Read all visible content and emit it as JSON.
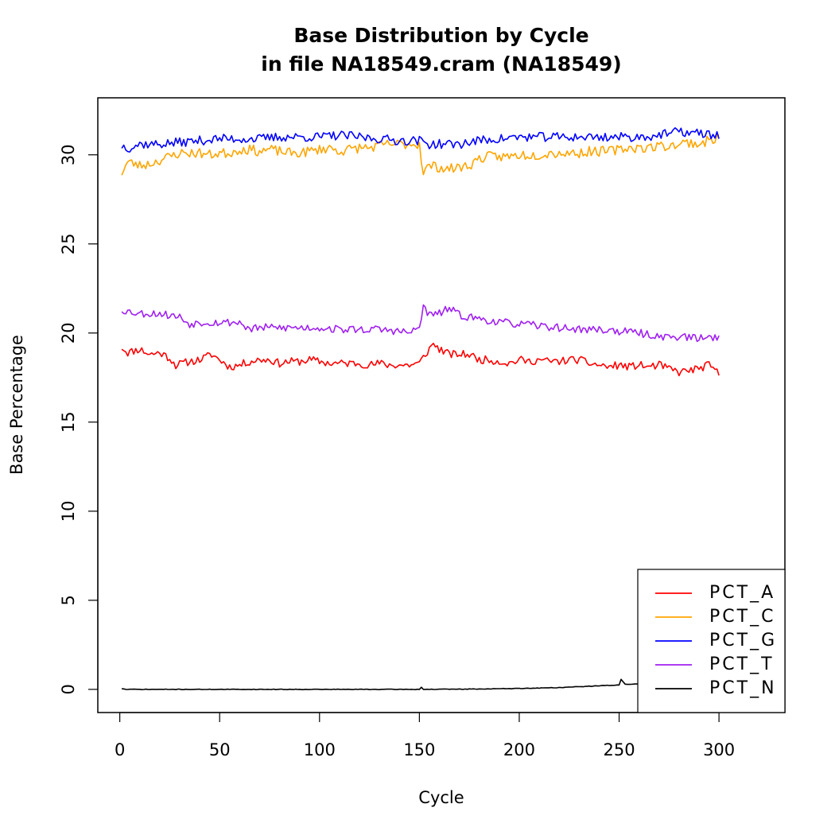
{
  "chart_data": {
    "type": "line",
    "title": "Base Distribution by Cycle",
    "subtitle": "in file NA18549.cram (NA18549)",
    "xlabel": "Cycle",
    "ylabel": "Base Percentage",
    "xlim": [
      -11,
      333
    ],
    "ylim": [
      -1.3,
      33.2
    ],
    "xticks": [
      0,
      50,
      100,
      150,
      200,
      250,
      300
    ],
    "yticks": [
      0,
      5,
      10,
      15,
      20,
      25,
      30
    ],
    "xtick_labels": [
      "0",
      "50",
      "100",
      "150",
      "200",
      "250",
      "300"
    ],
    "ytick_labels": [
      "0",
      "5",
      "10",
      "15",
      "20",
      "25",
      "30"
    ],
    "grid": false,
    "legend_position": "bottom-right",
    "x": [
      1,
      300
    ],
    "series": [
      {
        "name": "PCT_A",
        "color": "#ff0000",
        "anchors": [
          [
            1,
            19.2
          ],
          [
            4,
            18.9
          ],
          [
            10,
            19.1
          ],
          [
            15,
            18.8
          ],
          [
            20,
            18.9
          ],
          [
            25,
            18.6
          ],
          [
            28,
            18.2
          ],
          [
            35,
            18.4
          ],
          [
            40,
            18.5
          ],
          [
            46,
            18.8
          ],
          [
            50,
            18.5
          ],
          [
            55,
            18.1
          ],
          [
            60,
            18.2
          ],
          [
            65,
            18.4
          ],
          [
            70,
            18.5
          ],
          [
            75,
            18.5
          ],
          [
            80,
            18.3
          ],
          [
            85,
            18.4
          ],
          [
            90,
            18.4
          ],
          [
            95,
            18.5
          ],
          [
            100,
            18.4
          ],
          [
            105,
            18.3
          ],
          [
            110,
            18.3
          ],
          [
            115,
            18.3
          ],
          [
            120,
            18.3
          ],
          [
            125,
            18.2
          ],
          [
            130,
            18.3
          ],
          [
            135,
            18.2
          ],
          [
            140,
            18.2
          ],
          [
            145,
            18.2
          ],
          [
            150,
            18.3
          ],
          [
            153,
            18.8
          ],
          [
            157,
            19.4
          ],
          [
            160,
            19.1
          ],
          [
            165,
            18.8
          ],
          [
            170,
            18.8
          ],
          [
            175,
            18.8
          ],
          [
            180,
            18.5
          ],
          [
            185,
            18.5
          ],
          [
            190,
            18.4
          ],
          [
            195,
            18.3
          ],
          [
            200,
            18.5
          ],
          [
            205,
            18.4
          ],
          [
            210,
            18.5
          ],
          [
            215,
            18.4
          ],
          [
            220,
            18.4
          ],
          [
            225,
            18.5
          ],
          [
            230,
            18.5
          ],
          [
            235,
            18.3
          ],
          [
            240,
            18.2
          ],
          [
            245,
            18.1
          ],
          [
            250,
            18.2
          ],
          [
            255,
            18.1
          ],
          [
            260,
            18.2
          ],
          [
            265,
            18.1
          ],
          [
            270,
            18.2
          ],
          [
            275,
            18.0
          ],
          [
            280,
            17.8
          ],
          [
            285,
            17.9
          ],
          [
            290,
            18.0
          ],
          [
            295,
            18.2
          ],
          [
            300,
            17.7
          ]
        ],
        "noise": 0.22,
        "seed": 11
      },
      {
        "name": "PCT_C",
        "color": "#ffa500",
        "anchors": [
          [
            1,
            29.0
          ],
          [
            4,
            29.6
          ],
          [
            10,
            29.4
          ],
          [
            15,
            29.5
          ],
          [
            20,
            29.7
          ],
          [
            25,
            29.9
          ],
          [
            30,
            30.1
          ],
          [
            35,
            30.1
          ],
          [
            40,
            30.1
          ],
          [
            45,
            30.0
          ],
          [
            50,
            30.1
          ],
          [
            55,
            30.1
          ],
          [
            60,
            30.3
          ],
          [
            65,
            30.3
          ],
          [
            70,
            30.2
          ],
          [
            75,
            30.3
          ],
          [
            80,
            30.2
          ],
          [
            85,
            30.1
          ],
          [
            90,
            30.1
          ],
          [
            95,
            30.2
          ],
          [
            100,
            30.3
          ],
          [
            105,
            30.4
          ],
          [
            110,
            30.2
          ],
          [
            115,
            30.3
          ],
          [
            120,
            30.4
          ],
          [
            125,
            30.4
          ],
          [
            130,
            30.5
          ],
          [
            135,
            30.6
          ],
          [
            140,
            30.6
          ],
          [
            145,
            30.6
          ],
          [
            150,
            30.6
          ],
          [
            152,
            29.0
          ],
          [
            155,
            29.4
          ],
          [
            160,
            29.3
          ],
          [
            165,
            29.2
          ],
          [
            170,
            29.3
          ],
          [
            175,
            29.4
          ],
          [
            180,
            29.8
          ],
          [
            185,
            29.9
          ],
          [
            190,
            29.9
          ],
          [
            195,
            29.9
          ],
          [
            200,
            30.0
          ],
          [
            205,
            30.0
          ],
          [
            210,
            30.0
          ],
          [
            215,
            30.1
          ],
          [
            220,
            30.1
          ],
          [
            225,
            30.1
          ],
          [
            230,
            30.1
          ],
          [
            235,
            30.2
          ],
          [
            240,
            30.2
          ],
          [
            245,
            30.2
          ],
          [
            250,
            30.3
          ],
          [
            255,
            30.4
          ],
          [
            260,
            30.4
          ],
          [
            265,
            30.4
          ],
          [
            270,
            30.5
          ],
          [
            275,
            30.5
          ],
          [
            280,
            30.6
          ],
          [
            285,
            30.7
          ],
          [
            290,
            30.6
          ],
          [
            295,
            30.8
          ],
          [
            300,
            31.0
          ]
        ],
        "noise": 0.28,
        "seed": 23
      },
      {
        "name": "PCT_G",
        "color": "#0000ff",
        "anchors": [
          [
            1,
            30.5
          ],
          [
            5,
            30.4
          ],
          [
            10,
            30.6
          ],
          [
            20,
            30.6
          ],
          [
            30,
            30.7
          ],
          [
            40,
            30.8
          ],
          [
            50,
            30.9
          ],
          [
            60,
            30.9
          ],
          [
            70,
            30.9
          ],
          [
            80,
            31.0
          ],
          [
            90,
            31.0
          ],
          [
            100,
            31.0
          ],
          [
            110,
            31.1
          ],
          [
            120,
            31.0
          ],
          [
            130,
            30.9
          ],
          [
            140,
            30.8
          ],
          [
            150,
            30.8
          ],
          [
            155,
            30.6
          ],
          [
            160,
            30.6
          ],
          [
            170,
            30.6
          ],
          [
            180,
            30.8
          ],
          [
            190,
            30.9
          ],
          [
            200,
            31.0
          ],
          [
            210,
            31.0
          ],
          [
            220,
            31.0
          ],
          [
            230,
            31.0
          ],
          [
            240,
            31.0
          ],
          [
            250,
            31.0
          ],
          [
            260,
            31.0
          ],
          [
            270,
            31.1
          ],
          [
            280,
            31.3
          ],
          [
            290,
            31.2
          ],
          [
            300,
            31.1
          ]
        ],
        "noise": 0.26,
        "seed": 37
      },
      {
        "name": "PCT_T",
        "color": "#a020f0",
        "anchors": [
          [
            1,
            21.3
          ],
          [
            5,
            21.2
          ],
          [
            10,
            21.1
          ],
          [
            20,
            21.1
          ],
          [
            30,
            20.9
          ],
          [
            35,
            20.5
          ],
          [
            40,
            20.6
          ],
          [
            50,
            20.6
          ],
          [
            55,
            20.6
          ],
          [
            60,
            20.6
          ],
          [
            65,
            20.2
          ],
          [
            70,
            20.3
          ],
          [
            80,
            20.3
          ],
          [
            90,
            20.3
          ],
          [
            100,
            20.3
          ],
          [
            110,
            20.2
          ],
          [
            120,
            20.2
          ],
          [
            130,
            20.2
          ],
          [
            140,
            20.1
          ],
          [
            145,
            20.0
          ],
          [
            150,
            20.3
          ],
          [
            152,
            21.5
          ],
          [
            155,
            21.0
          ],
          [
            160,
            21.1
          ],
          [
            165,
            21.4
          ],
          [
            170,
            21.0
          ],
          [
            180,
            20.8
          ],
          [
            190,
            20.6
          ],
          [
            200,
            20.5
          ],
          [
            210,
            20.4
          ],
          [
            220,
            20.3
          ],
          [
            230,
            20.2
          ],
          [
            240,
            20.2
          ],
          [
            250,
            20.1
          ],
          [
            260,
            20.0
          ],
          [
            270,
            19.8
          ],
          [
            280,
            19.8
          ],
          [
            290,
            19.7
          ],
          [
            300,
            19.8
          ]
        ],
        "noise": 0.22,
        "seed": 53
      },
      {
        "name": "PCT_N",
        "color": "#000000",
        "anchors": [
          [
            1,
            0.04
          ],
          [
            3,
            0.0
          ],
          [
            150,
            0.0
          ],
          [
            151,
            0.13
          ],
          [
            152,
            0.0
          ],
          [
            180,
            0.02
          ],
          [
            200,
            0.05
          ],
          [
            220,
            0.1
          ],
          [
            240,
            0.2
          ],
          [
            250,
            0.25
          ],
          [
            251,
            0.55
          ],
          [
            253,
            0.28
          ],
          [
            260,
            0.3
          ],
          [
            270,
            0.28
          ],
          [
            280,
            0.27
          ],
          [
            290,
            0.27
          ],
          [
            300,
            0.28
          ]
        ],
        "noise": 0.015,
        "seed": 71
      }
    ]
  }
}
